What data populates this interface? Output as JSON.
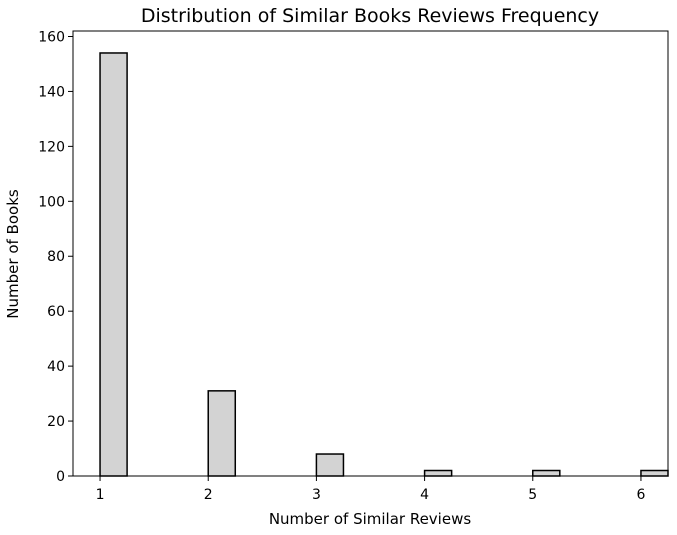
{
  "chart_data": {
    "type": "bar",
    "title": "Distribution of Similar Books Reviews Frequency",
    "xlabel": "Number of Similar Reviews",
    "ylabel": "Number of Books",
    "xlim": [
      0.75,
      6.25
    ],
    "ylim": [
      0,
      162
    ],
    "x_ticks": [
      1,
      2,
      3,
      4,
      5,
      6
    ],
    "y_ticks": [
      0,
      20,
      40,
      60,
      80,
      100,
      120,
      140,
      160
    ],
    "bin_width": 0.25,
    "bars": [
      {
        "x": 1,
        "value": 154
      },
      {
        "x": 2,
        "value": 31
      },
      {
        "x": 3,
        "value": 8
      },
      {
        "x": 4,
        "value": 2
      },
      {
        "x": 5,
        "value": 2
      },
      {
        "x": 6,
        "value": 2
      }
    ],
    "colors": {
      "bar_fill": "#d3d3d3",
      "bar_edge": "#000000",
      "axis": "#000000"
    },
    "grid": false
  }
}
